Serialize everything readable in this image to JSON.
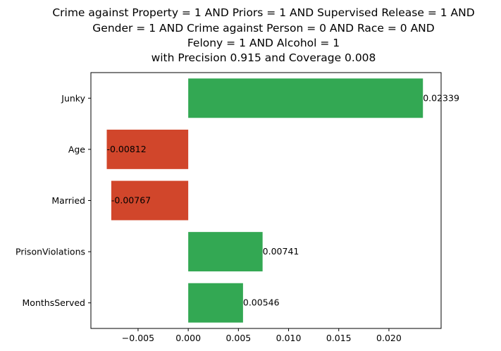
{
  "chart_data": {
    "type": "bar",
    "orientation": "horizontal",
    "title_lines": [
      "Crime against Property = 1 AND Priors = 1 AND Supervised Release = 1 AND",
      "Gender = 1 AND Crime against Person = 0 AND Race = 0 AND",
      "Felony = 1 AND Alcohol = 1",
      "with Precision 0.915 and Coverage 0.008"
    ],
    "categories": [
      "Junky",
      "Age",
      "Married",
      "PrisonViolations",
      "MonthsServed"
    ],
    "values": [
      0.02339,
      -0.00812,
      -0.00767,
      0.00741,
      0.00546
    ],
    "value_labels": [
      "0.02339",
      "-0.00812",
      "-0.00767",
      "0.00741",
      "0.00546"
    ],
    "xlim": [
      -0.0097,
      0.0252
    ],
    "xticks": [
      -0.005,
      0.0,
      0.005,
      0.01,
      0.015,
      0.02
    ],
    "xtick_labels": [
      "−0.005",
      "0.000",
      "0.005",
      "0.010",
      "0.015",
      "0.020"
    ],
    "colors": {
      "positive": "#33a853",
      "negative": "#d1462b",
      "axis": "#000000"
    },
    "xlabel": "",
    "ylabel": "",
    "grid": false,
    "legend": false
  }
}
